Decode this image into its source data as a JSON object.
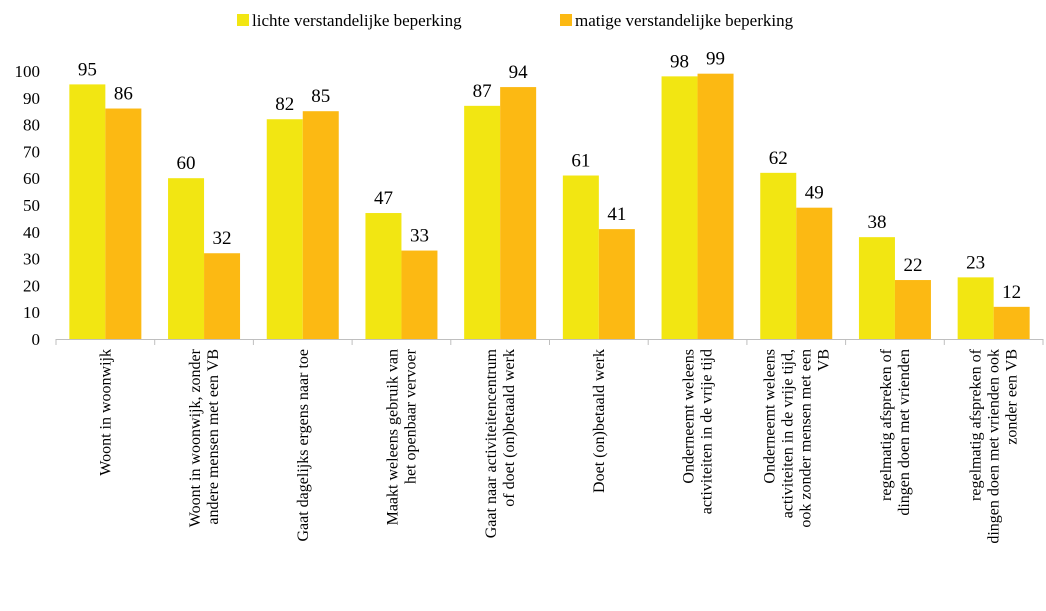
{
  "chart_data": {
    "type": "bar",
    "title": "",
    "xlabel": "",
    "ylabel": "",
    "ylim": [
      0,
      100
    ],
    "yticks": [
      0,
      10,
      20,
      30,
      40,
      50,
      60,
      70,
      80,
      90,
      100
    ],
    "grid": false,
    "legend_position": "top-center",
    "categories": [
      [
        "Woont in woonwijk"
      ],
      [
        "Woont in woonwijk, zonder",
        "andere mensen met een VB"
      ],
      [
        "Gaat dagelijks ergens naar toe"
      ],
      [
        "Maakt weleens gebruik van",
        "het openbaar vervoer"
      ],
      [
        "Gaat naar activiteitencentrum",
        "of doet (on)betaald werk"
      ],
      [
        "Doet (on)betaald werk"
      ],
      [
        "Onderneemt weleens",
        "activiteiten in de vrije tijd"
      ],
      [
        "Onderneemt weleens",
        "activiteiten in de vrije tijd,",
        "ook zonder mensen met een",
        "VB"
      ],
      [
        "regelmatig afspreken of",
        "dingen doen met vrienden"
      ],
      [
        "regelmatig afspreken of",
        "dingen doen met vrienden ook",
        "zonder een VB"
      ]
    ],
    "series": [
      {
        "name": "lichte verstandelijke beperking",
        "color": "#f2e612",
        "values": [
          95,
          60,
          82,
          47,
          87,
          61,
          98,
          62,
          38,
          23
        ]
      },
      {
        "name": "matige verstandelijke beperking",
        "color": "#fcb913",
        "values": [
          86,
          32,
          85,
          33,
          94,
          41,
          99,
          49,
          22,
          12
        ]
      }
    ]
  }
}
